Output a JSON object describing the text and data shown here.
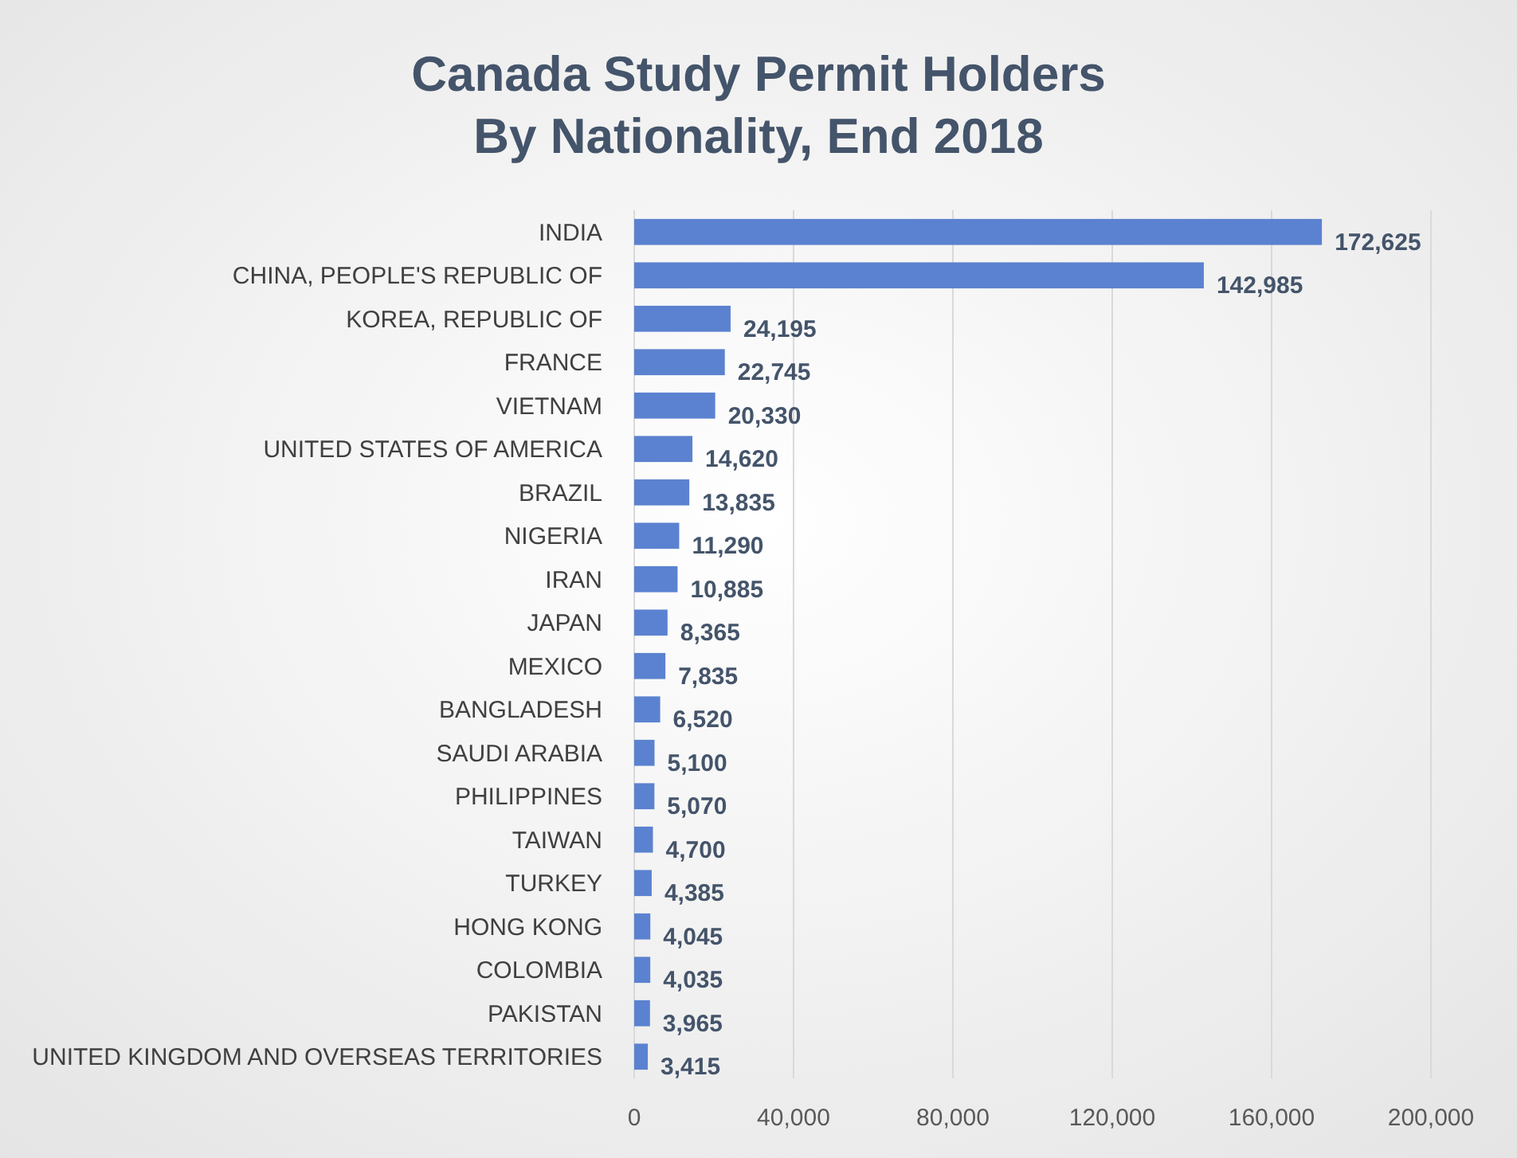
{
  "chart_data": {
    "type": "bar",
    "orientation": "horizontal",
    "title": "Canada Study Permit Holders\nBy Nationality, End 2018",
    "categories": [
      "INDIA",
      "CHINA, PEOPLE'S REPUBLIC OF",
      "KOREA, REPUBLIC OF",
      "FRANCE",
      "VIETNAM",
      "UNITED STATES OF AMERICA",
      "BRAZIL",
      "NIGERIA",
      "IRAN",
      "JAPAN",
      "MEXICO",
      "BANGLADESH",
      "SAUDI ARABIA",
      "PHILIPPINES",
      "TAIWAN",
      "TURKEY",
      "HONG KONG",
      "COLOMBIA",
      "PAKISTAN",
      "UNITED KINGDOM AND OVERSEAS TERRITORIES"
    ],
    "values": [
      172625,
      142985,
      24195,
      22745,
      20330,
      14620,
      13835,
      11290,
      10885,
      8365,
      7835,
      6520,
      5100,
      5070,
      4700,
      4385,
      4045,
      4035,
      3965,
      3415
    ],
    "value_labels": [
      "172,625",
      "142,985",
      "24,195",
      "22,745",
      "20,330",
      "14,620",
      "13,835",
      "11,290",
      "10,885",
      "8,365",
      "7,835",
      "6,520",
      "5,100",
      "5,070",
      "4,700",
      "4,385",
      "4,045",
      "4,035",
      "3,965",
      "3,415"
    ],
    "color": "#5b82d0",
    "xlim": [
      0,
      200000
    ],
    "xticks": [
      {
        "value": 0,
        "label": "0"
      },
      {
        "value": 40000,
        "label": "40,000"
      },
      {
        "value": 80000,
        "label": "80,000"
      },
      {
        "value": 120000,
        "label": "120,000"
      },
      {
        "value": 160000,
        "label": "160,000"
      },
      {
        "value": 200000,
        "label": "200,000"
      }
    ],
    "grid": "x"
  }
}
